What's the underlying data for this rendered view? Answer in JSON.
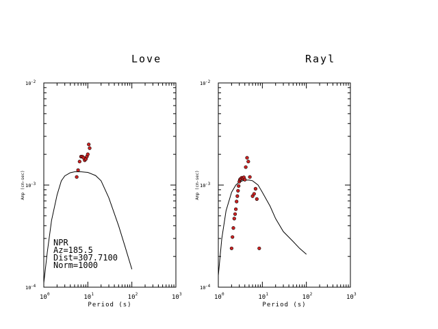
{
  "chart_data": [
    {
      "type": "scatter",
      "title": "Love",
      "xlabel": "Period (s)",
      "ylabel": "Amp (cm-sec)",
      "x_scale": "log",
      "y_scale": "log",
      "xlim": [
        1,
        1000
      ],
      "ylim": [
        0.0001,
        0.01
      ],
      "x_ticks": [
        {
          "base": "10",
          "exp": "0"
        },
        {
          "base": "10",
          "exp": "1"
        },
        {
          "base": "10",
          "exp": "2"
        },
        {
          "base": "10",
          "exp": "3"
        }
      ],
      "y_ticks": [
        {
          "base": "10",
          "exp": "-4"
        },
        {
          "base": "10",
          "exp": "-3"
        },
        {
          "base": "10",
          "exp": "-2"
        }
      ],
      "grid": false,
      "annotation": [
        "NPR",
        "Az=185.5",
        "Dist=307.7100",
        "Norm=1000"
      ],
      "series": [
        {
          "kind": "line",
          "color": "#000000",
          "x": [
            1.0,
            1.2,
            1.5,
            2.0,
            2.5,
            3.0,
            4.0,
            5.0,
            7.0,
            10.0,
            15.0,
            20.0,
            30.0,
            50.0,
            70.0,
            100.0
          ],
          "y": [
            0.00011,
            0.00022,
            0.00045,
            0.0008,
            0.0011,
            0.00123,
            0.00132,
            0.00135,
            0.00135,
            0.00133,
            0.00124,
            0.0011,
            0.00075,
            0.0004,
            0.00025,
            0.00015
          ]
        },
        {
          "kind": "points",
          "color": "#cc2222",
          "x": [
            5.6,
            6.0,
            6.5,
            7.0,
            7.5,
            8.0,
            8.5,
            9.0,
            9.5,
            10.0,
            10.5,
            11.0
          ],
          "y": [
            0.0012,
            0.0014,
            0.0017,
            0.0019,
            0.0019,
            0.00185,
            0.00175,
            0.0018,
            0.0019,
            0.002,
            0.0025,
            0.0023
          ]
        }
      ]
    },
    {
      "type": "scatter",
      "title": "Rayl",
      "xlabel": "Period (s)",
      "ylabel": "Amp (cm-sec)",
      "x_scale": "log",
      "y_scale": "log",
      "xlim": [
        1,
        1000
      ],
      "ylim": [
        0.0001,
        0.01
      ],
      "x_ticks": [
        {
          "base": "10",
          "exp": "0"
        },
        {
          "base": "10",
          "exp": "1"
        },
        {
          "base": "10",
          "exp": "2"
        },
        {
          "base": "10",
          "exp": "3"
        }
      ],
      "y_ticks": [
        {
          "base": "10",
          "exp": "-4"
        },
        {
          "base": "10",
          "exp": "-3"
        },
        {
          "base": "10",
          "exp": "-2"
        }
      ],
      "grid": false,
      "series": [
        {
          "kind": "line",
          "color": "#000000",
          "x": [
            1.0,
            1.2,
            1.5,
            2.0,
            2.5,
            3.0,
            4.0,
            5.0,
            6.0,
            8.0,
            10.0,
            15.0,
            20.0,
            30.0,
            50.0,
            70.0,
            100.0
          ],
          "y": [
            0.00013,
            0.0003,
            0.00056,
            0.00085,
            0.001,
            0.00107,
            0.00112,
            0.00112,
            0.0011,
            0.001,
            0.00085,
            0.00062,
            0.00047,
            0.00035,
            0.00028,
            0.00024,
            0.00021
          ]
        },
        {
          "kind": "points",
          "color": "#cc2222",
          "x": [
            2.0,
            2.1,
            2.2,
            2.3,
            2.4,
            2.5,
            2.6,
            2.7,
            2.8,
            2.9,
            3.0,
            3.1,
            3.2,
            3.4,
            3.6,
            3.8,
            4.0,
            4.2,
            4.5,
            4.8,
            5.2,
            6.0,
            6.5,
            7.0,
            7.5,
            8.5
          ],
          "y": [
            0.00024,
            0.00031,
            0.00038,
            0.00047,
            0.00052,
            0.00058,
            0.00069,
            0.00078,
            0.00088,
            0.00098,
            0.00108,
            0.00113,
            0.00115,
            0.00118,
            0.00116,
            0.00119,
            0.00113,
            0.0015,
            0.00185,
            0.0017,
            0.0012,
            0.00078,
            0.00082,
            0.00092,
            0.00073,
            0.00024
          ]
        }
      ]
    }
  ]
}
